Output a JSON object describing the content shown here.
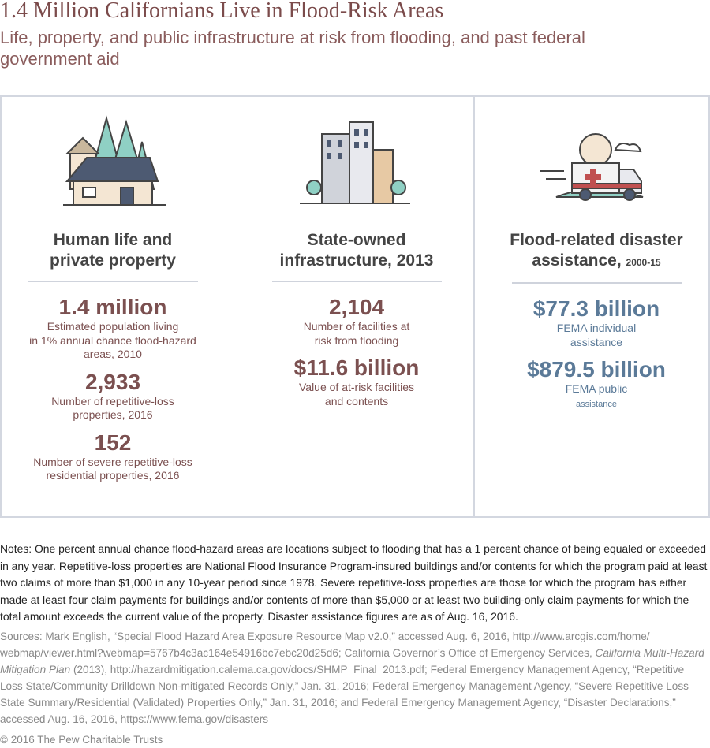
{
  "header": {
    "title": "1.4 Million Californians Live in Flood-Risk Areas",
    "subtitle": "Life, property, and public infrastructure at risk from flooding, and past federal government aid"
  },
  "panels": [
    {
      "heading": [
        "Human life and",
        "private property"
      ],
      "stats": [
        {
          "value": "1.4 million",
          "description": [
            "Estimated population living",
            "in 1% annual chance flood-hazard",
            "areas, 2010"
          ]
        },
        {
          "value": "2,933",
          "description": [
            "Number of repetitive-loss",
            "properties, 2016"
          ]
        },
        {
          "value": "152",
          "description": [
            "Number of severe repetitive-loss",
            "residential properties, 2016"
          ]
        }
      ]
    },
    {
      "heading": [
        "State-owned",
        "infrastructure, 2013"
      ],
      "stats": [
        {
          "value": "2,104",
          "description": [
            "Number of facilities at",
            "risk from flooding"
          ]
        },
        {
          "value": "$11.6 billion",
          "description": [
            "Value of at-risk facilities",
            "and contents"
          ]
        }
      ]
    },
    {
      "heading": [
        "Flood-related disaster",
        "assistance,"
      ],
      "heading_note": "2000-15",
      "stats": [
        {
          "value": "$77.3 billion",
          "description": [
            "FEMA individual",
            "assistance"
          ]
        },
        {
          "value": "$879.5 billion",
          "description": [
            "FEMA public",
            "assistance"
          ]
        }
      ]
    }
  ],
  "notes": "Notes: One percent annual chance flood-hazard areas are locations subject to flooding that has a 1 percent chance of being equaled or exceeded in any year. Repetitive-loss properties are National Flood Insurance Program-insured buildings and/or contents for which the program paid at least two claims of more than $1,000 in any 10-year period since 1978. Severe repetitive-loss properties are those for which the program has either made at least four claim payments for buildings and/or contents of more than $5,000 or at least two building-only claim payments for which the total amount exceeds the current value of the property. Disaster assistance figures are as of Aug. 16, 2016.",
  "sources": [
    "Sources: Mark English, “Special Flood Hazard Area Exposure Resource Map v2.0,” accessed Aug. 6, 2016, http://www.arcgis.com/home/ webmap/viewer.html?webmap=5767b4c3ac164e54916bc7ebc20d25d6; California Governor’s Office of Emergency Services, ",
    "California Multi-Hazard Mitigation Plan",
    " (2013), http://hazardmitigation.calema.ca.gov/docs/SHMP_Final_2013.pdf; Federal Emergency Management Agency, “Repetitive Loss State/Community Drilldown Non-mitigated Records Only,” Jan. 31, 2016; Federal Emergency Management Agency, “Severe Repetitive Loss State Summary/Residential (Validated) Properties Only,” Jan. 31, 2016; and Federal Emergency Management Agency, “Disaster Declarations,” accessed Aug. 16, 2016, https://www.fema.gov/disasters"
  ],
  "copyright": "© 2016 The Pew Charitable Trusts"
}
